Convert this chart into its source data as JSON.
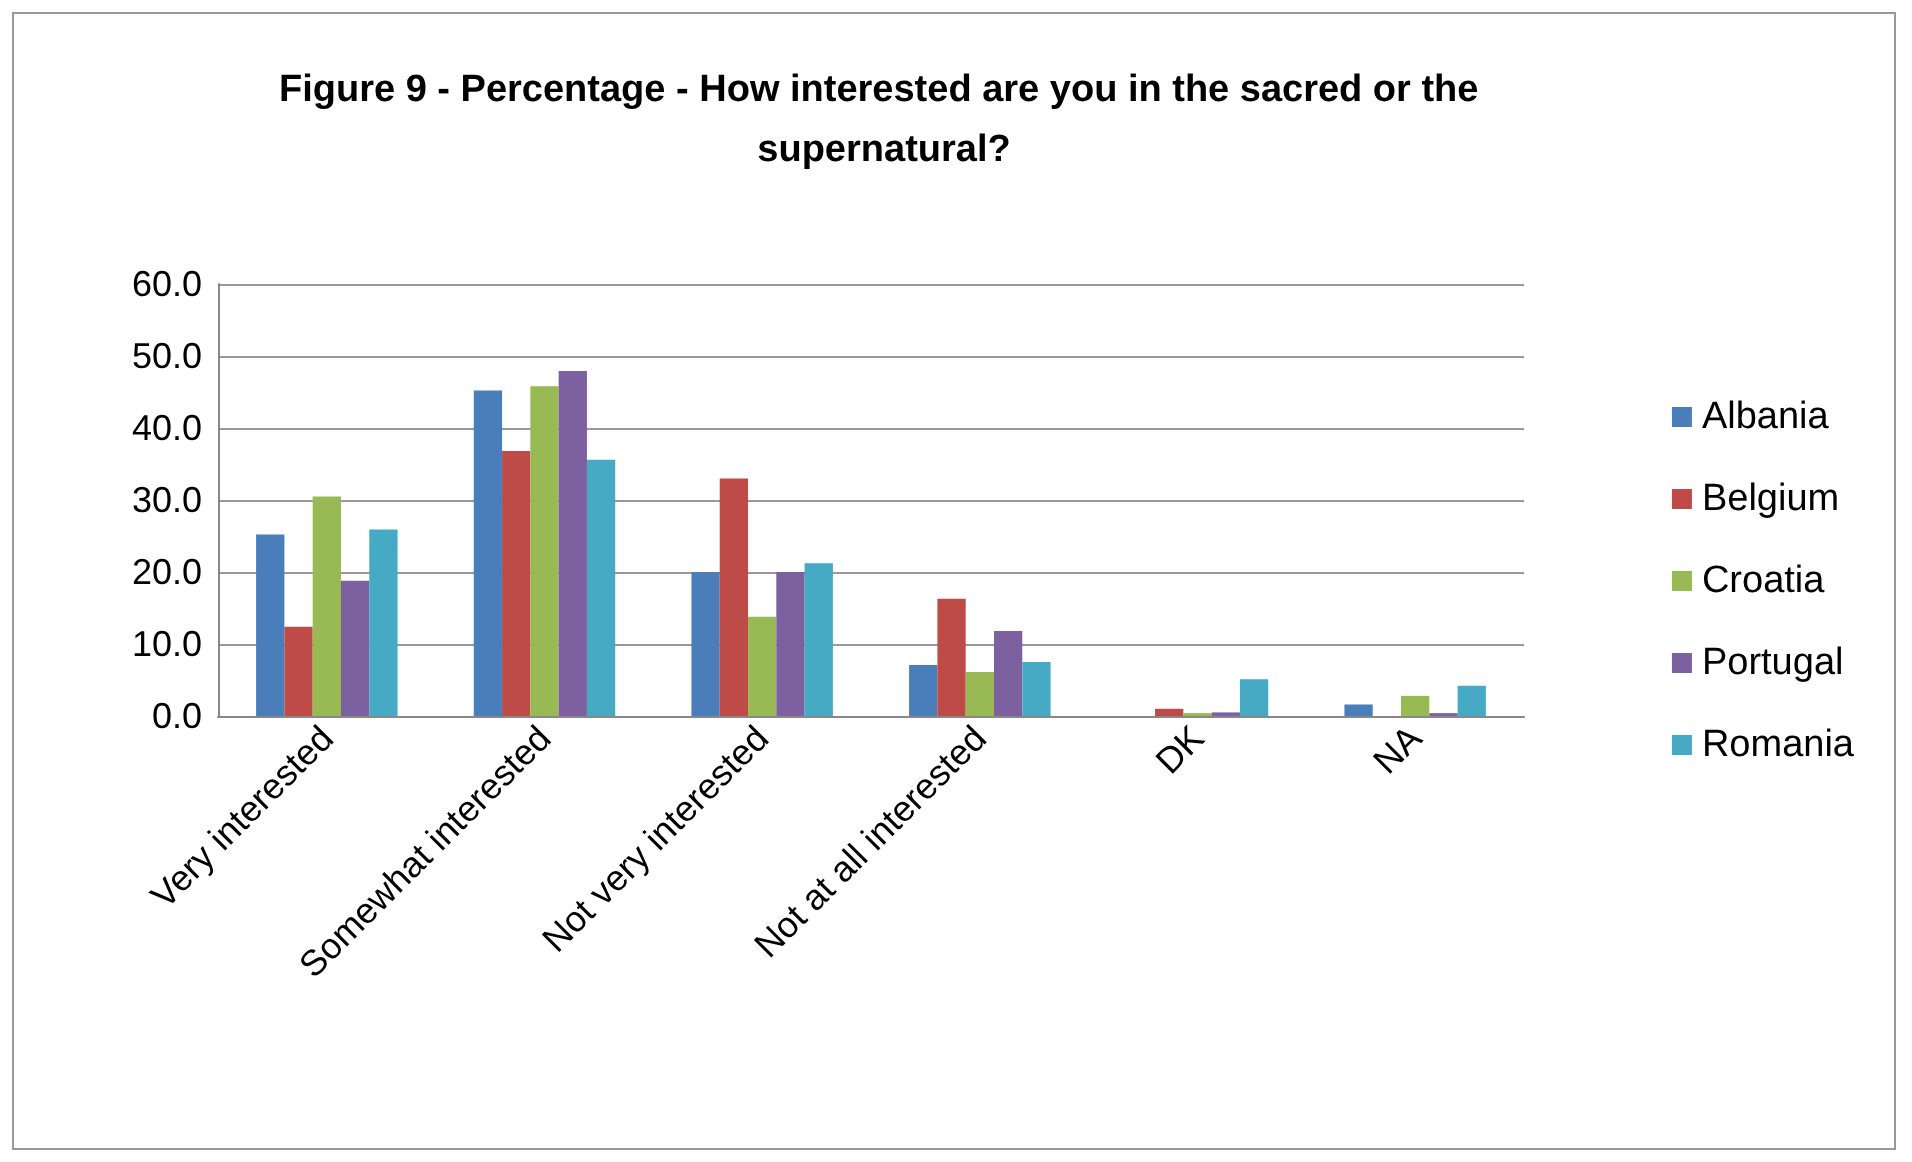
{
  "chart_data": {
    "type": "bar",
    "title": "Figure 9 - Percentage - How interested are you in the sacred or the supernatural?",
    "categories": [
      "Very interested",
      "Somewhat interested",
      "Not very interested",
      "Not at all interested",
      "DK",
      "NA"
    ],
    "series": [
      {
        "name": "Albania",
        "color": "#4a7ebb",
        "values": [
          25.2,
          45.2,
          20.0,
          7.1,
          0,
          1.6
        ]
      },
      {
        "name": "Belgium",
        "color": "#be4b48",
        "values": [
          12.4,
          36.8,
          33.0,
          16.3,
          1.0,
          0
        ]
      },
      {
        "name": "Croatia",
        "color": "#98b954",
        "values": [
          30.5,
          45.8,
          13.8,
          6.1,
          0.4,
          2.8
        ]
      },
      {
        "name": "Portugal",
        "color": "#7d60a0",
        "values": [
          18.8,
          47.9,
          20.0,
          11.8,
          0.5,
          0.4
        ]
      },
      {
        "name": "Romania",
        "color": "#46aac5",
        "values": [
          25.9,
          35.6,
          21.2,
          7.5,
          5.1,
          4.2
        ]
      }
    ],
    "ylim": [
      0,
      60
    ],
    "yticks": [
      {
        "value": 0,
        "label": "0.0"
      },
      {
        "value": 10,
        "label": "10.0"
      },
      {
        "value": 20,
        "label": "20.0"
      },
      {
        "value": 30,
        "label": "30.0"
      },
      {
        "value": 40,
        "label": "40.0"
      },
      {
        "value": 50,
        "label": "50.0"
      },
      {
        "value": 60,
        "label": "60.0"
      }
    ],
    "grid": "y",
    "legend": "right"
  }
}
